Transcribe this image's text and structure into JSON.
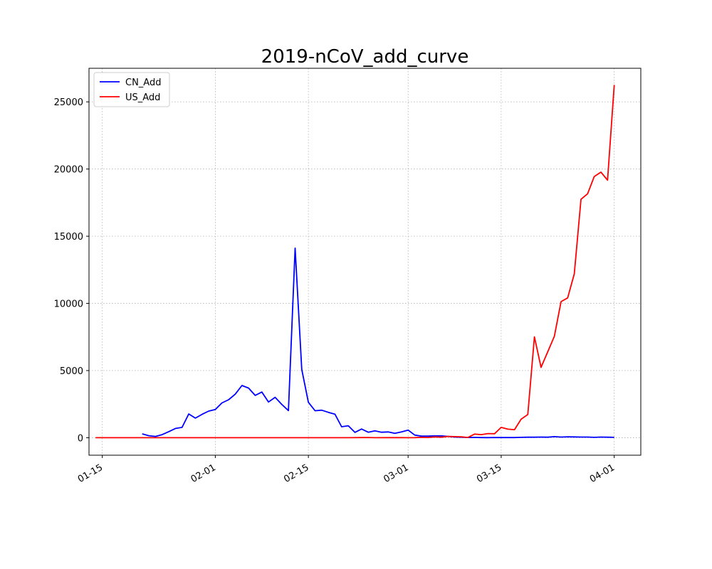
{
  "chart_data": {
    "type": "line",
    "title": "2019-nCoV_add_curve",
    "xlabel": "",
    "ylabel": "",
    "x_axis_type": "date",
    "year": 2020,
    "xlim": [
      "2020-01-13",
      "2020-04-05"
    ],
    "ylim": [
      -1300,
      27500
    ],
    "x_ticks": [
      {
        "date": "2020-01-15",
        "label": "01-15"
      },
      {
        "date": "2020-02-01",
        "label": "02-01"
      },
      {
        "date": "2020-02-15",
        "label": "02-15"
      },
      {
        "date": "2020-03-01",
        "label": "03-01"
      },
      {
        "date": "2020-03-15",
        "label": "03-15"
      },
      {
        "date": "2020-04-01",
        "label": "04-01"
      }
    ],
    "y_ticks": [
      {
        "value": 0,
        "label": "0"
      },
      {
        "value": 5000,
        "label": "5000"
      },
      {
        "value": 10000,
        "label": "10000"
      },
      {
        "value": 15000,
        "label": "15000"
      },
      {
        "value": 20000,
        "label": "20000"
      },
      {
        "value": 25000,
        "label": "25000"
      }
    ],
    "grid": true,
    "legend_position": "top-left",
    "series": [
      {
        "name": "CN_Add",
        "color": "#0000ff",
        "points": [
          [
            "2020-01-21",
            290
          ],
          [
            "2020-01-22",
            150
          ],
          [
            "2020-01-23",
            100
          ],
          [
            "2020-01-24",
            230
          ],
          [
            "2020-01-25",
            450
          ],
          [
            "2020-01-26",
            690
          ],
          [
            "2020-01-27",
            770
          ],
          [
            "2020-01-28",
            1770
          ],
          [
            "2020-01-29",
            1460
          ],
          [
            "2020-01-30",
            1740
          ],
          [
            "2020-01-31",
            1980
          ],
          [
            "2020-02-01",
            2100
          ],
          [
            "2020-02-02",
            2590
          ],
          [
            "2020-02-03",
            2830
          ],
          [
            "2020-02-04",
            3240
          ],
          [
            "2020-02-05",
            3890
          ],
          [
            "2020-02-06",
            3700
          ],
          [
            "2020-02-07",
            3150
          ],
          [
            "2020-02-08",
            3400
          ],
          [
            "2020-02-09",
            2660
          ],
          [
            "2020-02-10",
            3010
          ],
          [
            "2020-02-11",
            2480
          ],
          [
            "2020-02-12",
            2020
          ],
          [
            "2020-02-13",
            14110
          ],
          [
            "2020-02-14",
            5090
          ],
          [
            "2020-02-15",
            2640
          ],
          [
            "2020-02-16",
            2010
          ],
          [
            "2020-02-17",
            2050
          ],
          [
            "2020-02-18",
            1890
          ],
          [
            "2020-02-19",
            1750
          ],
          [
            "2020-02-20",
            820
          ],
          [
            "2020-02-21",
            890
          ],
          [
            "2020-02-22",
            400
          ],
          [
            "2020-02-23",
            650
          ],
          [
            "2020-02-24",
            410
          ],
          [
            "2020-02-25",
            510
          ],
          [
            "2020-02-26",
            410
          ],
          [
            "2020-02-27",
            430
          ],
          [
            "2020-02-28",
            330
          ],
          [
            "2020-02-29",
            430
          ],
          [
            "2020-03-01",
            570
          ],
          [
            "2020-03-02",
            200
          ],
          [
            "2020-03-03",
            120
          ],
          [
            "2020-03-04",
            120
          ],
          [
            "2020-03-05",
            140
          ],
          [
            "2020-03-06",
            140
          ],
          [
            "2020-03-07",
            100
          ],
          [
            "2020-03-08",
            50
          ],
          [
            "2020-03-09",
            40
          ],
          [
            "2020-03-10",
            20
          ],
          [
            "2020-03-11",
            25
          ],
          [
            "2020-03-12",
            15
          ],
          [
            "2020-03-13",
            10
          ],
          [
            "2020-03-14",
            20
          ],
          [
            "2020-03-15",
            15
          ],
          [
            "2020-03-16",
            15
          ],
          [
            "2020-03-17",
            15
          ],
          [
            "2020-03-18",
            30
          ],
          [
            "2020-03-19",
            40
          ],
          [
            "2020-03-20",
            40
          ],
          [
            "2020-03-21",
            50
          ],
          [
            "2020-03-22",
            40
          ],
          [
            "2020-03-23",
            80
          ],
          [
            "2020-03-24",
            50
          ],
          [
            "2020-03-25",
            70
          ],
          [
            "2020-03-26",
            60
          ],
          [
            "2020-03-27",
            50
          ],
          [
            "2020-03-28",
            50
          ],
          [
            "2020-03-29",
            30
          ],
          [
            "2020-03-30",
            50
          ],
          [
            "2020-03-31",
            40
          ],
          [
            "2020-04-01",
            30
          ]
        ]
      },
      {
        "name": "US_Add",
        "color": "#ff0000",
        "points": [
          [
            "2020-01-14",
            0
          ],
          [
            "2020-01-21",
            1
          ],
          [
            "2020-01-24",
            1
          ],
          [
            "2020-01-26",
            3
          ],
          [
            "2020-01-31",
            1
          ],
          [
            "2020-02-02",
            2
          ],
          [
            "2020-02-05",
            1
          ],
          [
            "2020-02-10",
            1
          ],
          [
            "2020-02-13",
            1
          ],
          [
            "2020-02-21",
            2
          ],
          [
            "2020-02-24",
            20
          ],
          [
            "2020-02-25",
            0
          ],
          [
            "2020-02-27",
            10
          ],
          [
            "2020-02-29",
            8
          ],
          [
            "2020-03-01",
            0
          ],
          [
            "2020-03-02",
            10
          ],
          [
            "2020-03-03",
            30
          ],
          [
            "2020-03-04",
            20
          ],
          [
            "2020-03-05",
            60
          ],
          [
            "2020-03-06",
            40
          ],
          [
            "2020-03-07",
            100
          ],
          [
            "2020-03-08",
            80
          ],
          [
            "2020-03-09",
            70
          ],
          [
            "2020-03-10",
            20
          ],
          [
            "2020-03-11",
            270
          ],
          [
            "2020-03-12",
            230
          ],
          [
            "2020-03-13",
            310
          ],
          [
            "2020-03-14",
            300
          ],
          [
            "2020-03-15",
            770
          ],
          [
            "2020-03-16",
            640
          ],
          [
            "2020-03-17",
            600
          ],
          [
            "2020-03-18",
            1380
          ],
          [
            "2020-03-19",
            1730
          ],
          [
            "2020-03-20",
            7510
          ],
          [
            "2020-03-21",
            5240
          ],
          [
            "2020-03-22",
            6400
          ],
          [
            "2020-03-23",
            7550
          ],
          [
            "2020-03-24",
            10130
          ],
          [
            "2020-03-25",
            10410
          ],
          [
            "2020-03-26",
            12200
          ],
          [
            "2020-03-27",
            17750
          ],
          [
            "2020-03-28",
            18160
          ],
          [
            "2020-03-29",
            19440
          ],
          [
            "2020-03-30",
            19770
          ],
          [
            "2020-03-31",
            19170
          ],
          [
            "2020-04-01",
            26260
          ]
        ]
      }
    ]
  }
}
